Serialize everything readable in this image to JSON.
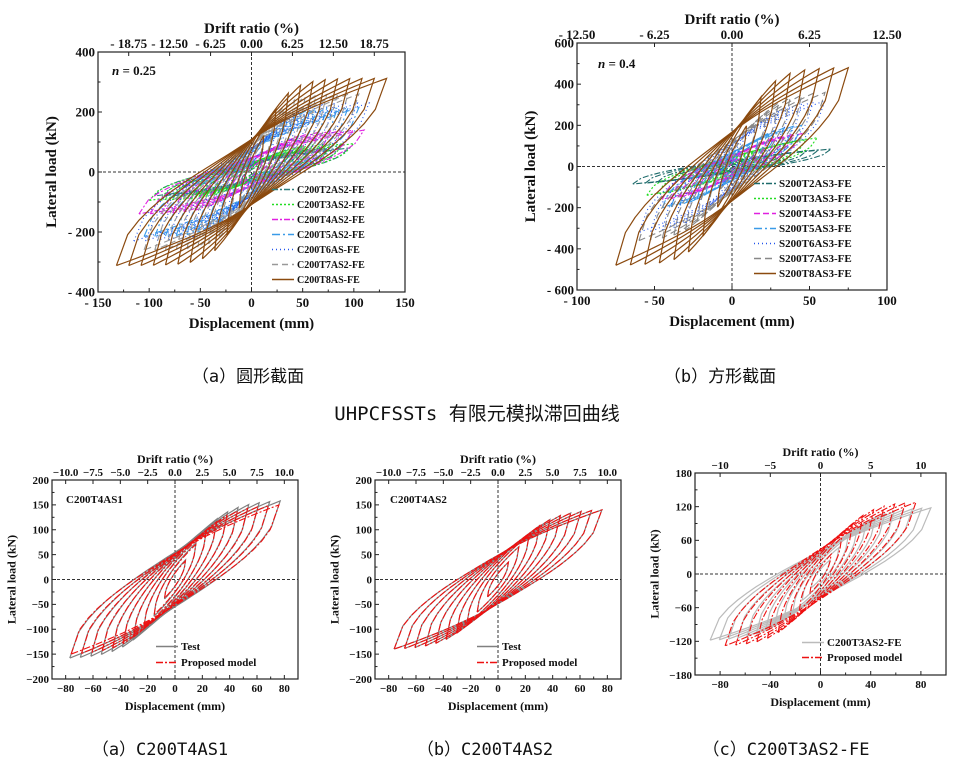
{
  "figure_title": "UHPCFSSTs 有限元模拟滞回曲线",
  "captions": {
    "top_a": "（a）圆形截面",
    "top_b": "（b）方形截面",
    "bottom_a": "（a）C200T4AS1",
    "bottom_b": "（b）C200T4AS2",
    "bottom_c": "（c）C200T3AS2-FE"
  },
  "chart_data": [
    {
      "id": "top_a",
      "type": "line",
      "title": "",
      "annotation": "n = 0.25",
      "xlabel": "Displacement (mm)",
      "ylabel": "Lateral load (kN)",
      "x2label": "Drift ratio (%)",
      "xlim": [
        -150,
        150
      ],
      "ylim": [
        -400,
        400
      ],
      "xticks": [
        -150,
        -100,
        -50,
        0,
        50,
        100,
        150
      ],
      "xtick_labels": [
        "- 150",
        "- 100",
        "- 50",
        "0",
        "50",
        "100",
        "150"
      ],
      "yticks": [
        -400,
        -200,
        0,
        200,
        400
      ],
      "ytick_labels": [
        "- 400",
        "- 200",
        "0",
        "200",
        "400"
      ],
      "x2ticks": [
        -120,
        -80,
        -40,
        0,
        40,
        80,
        120
      ],
      "x2tick_labels": [
        "- 18.75",
        "- 12.50",
        "- 6.25",
        "0.00",
        "6.25",
        "12.50",
        "18.75"
      ],
      "legend_position": "bottom-right",
      "series": [
        {
          "name": "C200T2AS2-FE",
          "color": "#2e7d7d",
          "dash": "6,2,2,2",
          "dmax": 95,
          "pmax": 80,
          "k": 6,
          "cycles": 10
        },
        {
          "name": "C200T3AS2-FE",
          "color": "#22dd22",
          "dash": "2,2",
          "dmax": 100,
          "pmax": 95,
          "k": 6,
          "cycles": 10
        },
        {
          "name": "C200T4AS2-FE",
          "color": "#e020e0",
          "dash": "6,2,2,2",
          "dmax": 110,
          "pmax": 140,
          "k": 6,
          "cycles": 10
        },
        {
          "name": "C200T5AS2-FE",
          "color": "#3a9be8",
          "dash": "8,3,2,3",
          "dmax": 105,
          "pmax": 215,
          "k": 7,
          "cycles": 10
        },
        {
          "name": "C200T6AS-FE",
          "color": "#2255ee",
          "dash": "1,3",
          "dmax": 115,
          "pmax": 230,
          "k": 7,
          "cycles": 10
        },
        {
          "name": "C200T7AS2-FE",
          "color": "#999999",
          "dash": "6,4",
          "dmax": 105,
          "pmax": 260,
          "k": 8,
          "cycles": 10
        },
        {
          "name": "C200T8AS-FE",
          "color": "#8b4a0f",
          "dash": "",
          "dmax": 132,
          "pmax": 312,
          "k": 9,
          "cycles": 11
        }
      ]
    },
    {
      "id": "top_b",
      "type": "line",
      "title": "",
      "annotation": "n = 0.4",
      "xlabel": "Displacement (mm)",
      "ylabel": "Lateral load (kN)",
      "x2label": "Drift ratio (%)",
      "xlim": [
        -100,
        100
      ],
      "ylim": [
        -600,
        600
      ],
      "xticks": [
        -100,
        -50,
        0,
        50,
        100
      ],
      "xtick_labels": [
        "- 100",
        "- 50",
        "0",
        "50",
        "100"
      ],
      "yticks": [
        -600,
        -400,
        -200,
        0,
        200,
        400,
        600
      ],
      "ytick_labels": [
        "- 600",
        "- 400",
        "- 200",
        "0",
        "200",
        "400",
        "600"
      ],
      "x2ticks": [
        -100,
        -50,
        0,
        50,
        100
      ],
      "x2tick_labels": [
        "- 12.50",
        "- 6.25",
        "0.00",
        "6.25",
        "12.50"
      ],
      "legend_position": "bottom-right",
      "series": [
        {
          "name": "S200T2AS3-FE",
          "color": "#1d6b6b",
          "dash": "6,2,2,2",
          "dmax": 64,
          "pmax": 85,
          "k": 3,
          "cycles": 8
        },
        {
          "name": "S200T3AS3-FE",
          "color": "#22dd22",
          "dash": "2,2",
          "dmax": 55,
          "pmax": 140,
          "k": 3,
          "cycles": 8
        },
        {
          "name": "S200T4AS3-FE",
          "color": "#e020e0",
          "dash": "6,3",
          "dmax": 45,
          "pmax": 160,
          "k": 4,
          "cycles": 8
        },
        {
          "name": "S200T5AS3-FE",
          "color": "#3a9be8",
          "dash": "8,3,2,3",
          "dmax": 45,
          "pmax": 200,
          "k": 4,
          "cycles": 8
        },
        {
          "name": "S200T6AS3-FE",
          "color": "#2255ee",
          "dash": "1,3",
          "dmax": 60,
          "pmax": 320,
          "k": 5,
          "cycles": 8
        },
        {
          "name": "S200T7AS3-FE",
          "color": "#888888",
          "dash": "7,4",
          "dmax": 60,
          "pmax": 360,
          "k": 5,
          "cycles": 8
        },
        {
          "name": "S200T8AS3-FE",
          "color": "#8b4a0f",
          "dash": "",
          "dmax": 75,
          "pmax": 480,
          "k": 7,
          "cycles": 8
        }
      ]
    },
    {
      "id": "bottom_a",
      "type": "line",
      "title": "",
      "annotation": "C200T4AS1",
      "xlabel": "Displacement (mm)",
      "ylabel": "Lateral load (kN)",
      "x2label": "Drift ratio (%)",
      "xlim": [
        -90,
        90
      ],
      "ylim": [
        -200,
        200
      ],
      "xticks": [
        -80,
        -60,
        -40,
        -20,
        0,
        20,
        40,
        60,
        80
      ],
      "xtick_labels": [
        "−80",
        "−60",
        "−40",
        "−20",
        "0",
        "20",
        "40",
        "60",
        "80"
      ],
      "yticks": [
        -200,
        -150,
        -100,
        -50,
        0,
        50,
        100,
        150,
        200
      ],
      "ytick_labels": [
        "−200",
        "−150",
        "−100",
        "−50",
        "0",
        "50",
        "100",
        "150",
        "200"
      ],
      "x2ticks": [
        -80,
        -60,
        -40,
        -20,
        0,
        20,
        40,
        60,
        80
      ],
      "x2tick_labels": [
        "−10.0",
        "−7.5",
        "−5.0",
        "−2.5",
        "0.0",
        "2.5",
        "5.0",
        "7.5",
        "10.0"
      ],
      "legend_position": "bottom-right",
      "series": [
        {
          "name": "Test",
          "color": "#808080",
          "dash": "",
          "dmax": 77,
          "pmax": 158,
          "k": 5,
          "cycles": 10
        },
        {
          "name": "Proposed model",
          "color": "#ee1111",
          "dash": "7,2,2,2",
          "dmax": 76,
          "pmax": 150,
          "k": 5,
          "cycles": 10
        }
      ]
    },
    {
      "id": "bottom_b",
      "type": "line",
      "title": "",
      "annotation": "C200T4AS2",
      "xlabel": "Displacement (mm)",
      "ylabel": "Lateral load (kN)",
      "x2label": "Drift ratio (%)",
      "xlim": [
        -90,
        90
      ],
      "ylim": [
        -200,
        200
      ],
      "xticks": [
        -80,
        -60,
        -40,
        -20,
        0,
        20,
        40,
        60,
        80
      ],
      "xtick_labels": [
        "−80",
        "−60",
        "−40",
        "−20",
        "0",
        "20",
        "40",
        "60",
        "80"
      ],
      "yticks": [
        -200,
        -150,
        -100,
        -50,
        0,
        50,
        100,
        150,
        200
      ],
      "ytick_labels": [
        "−200",
        "−150",
        "−100",
        "−50",
        "0",
        "50",
        "100",
        "150",
        "200"
      ],
      "x2ticks": [
        -80,
        -60,
        -40,
        -20,
        0,
        20,
        40,
        60,
        80
      ],
      "x2tick_labels": [
        "−10.0",
        "−7.5",
        "−5.0",
        "−2.5",
        "0.0",
        "2.5",
        "5.0",
        "7.5",
        "10.0"
      ],
      "legend_position": "bottom-right",
      "series": [
        {
          "name": "Test",
          "color": "#808080",
          "dash": "",
          "dmax": 76,
          "pmax": 140,
          "k": 5,
          "cycles": 10
        },
        {
          "name": "Proposed model",
          "color": "#ee1111",
          "dash": "7,2,2,2",
          "dmax": 76,
          "pmax": 140,
          "k": 5,
          "cycles": 10
        }
      ]
    },
    {
      "id": "bottom_c",
      "type": "line",
      "title": "",
      "annotation": "",
      "xlabel": "Displacement (mm)",
      "ylabel": "Lateral load (kN)",
      "x2label": "Drift ratio (%)",
      "xlim": [
        -100,
        100
      ],
      "ylim": [
        -180,
        180
      ],
      "xticks": [
        -80,
        -40,
        0,
        40,
        80
      ],
      "xtick_labels": [
        "−80",
        "−40",
        "0",
        "40",
        "80"
      ],
      "yticks": [
        -180,
        -120,
        -60,
        0,
        60,
        120,
        180
      ],
      "ytick_labels": [
        "−180",
        "−120",
        "−60",
        "0",
        "60",
        "120",
        "180"
      ],
      "x2ticks": [
        -80,
        -40,
        0,
        40,
        80
      ],
      "x2tick_labels": [
        "−10",
        "−5",
        "0",
        "5",
        "10"
      ],
      "legend_position": "bottom-right",
      "series": [
        {
          "name": "C200T3AS2-FE",
          "color": "#bbbbbb",
          "dash": "",
          "dmax": 88,
          "pmax": 118,
          "k": 5,
          "cycles": 12
        },
        {
          "name": "Proposed model",
          "color": "#ee1111",
          "dash": "7,2,2,2",
          "dmax": 76,
          "pmax": 128,
          "k": 5,
          "cycles": 9
        }
      ]
    }
  ]
}
